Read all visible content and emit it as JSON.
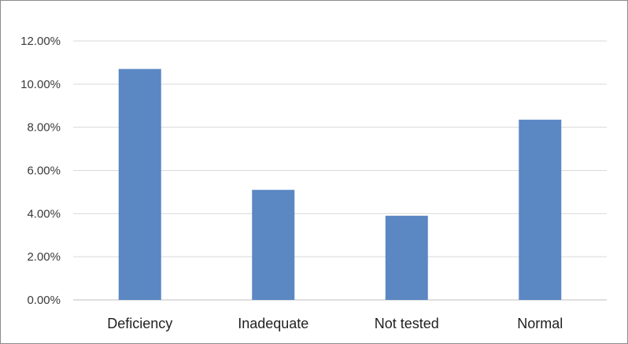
{
  "chart_data": {
    "type": "bar",
    "categories": [
      "Deficiency",
      "Inadequate",
      "Not tested",
      "Normal"
    ],
    "values": [
      10.7,
      5.1,
      3.9,
      8.35
    ],
    "value_unit": "%",
    "ylim": [
      0,
      12
    ],
    "yticks": [
      0,
      2,
      4,
      6,
      8,
      10,
      12
    ],
    "ytick_labels": [
      "0.00%",
      "2.00%",
      "4.00%",
      "6.00%",
      "8.00%",
      "10.00%",
      "12.00%"
    ],
    "grid": true,
    "legend": "none",
    "bar_color": "#5b87c3",
    "grid_color": "#d9d9d9"
  }
}
